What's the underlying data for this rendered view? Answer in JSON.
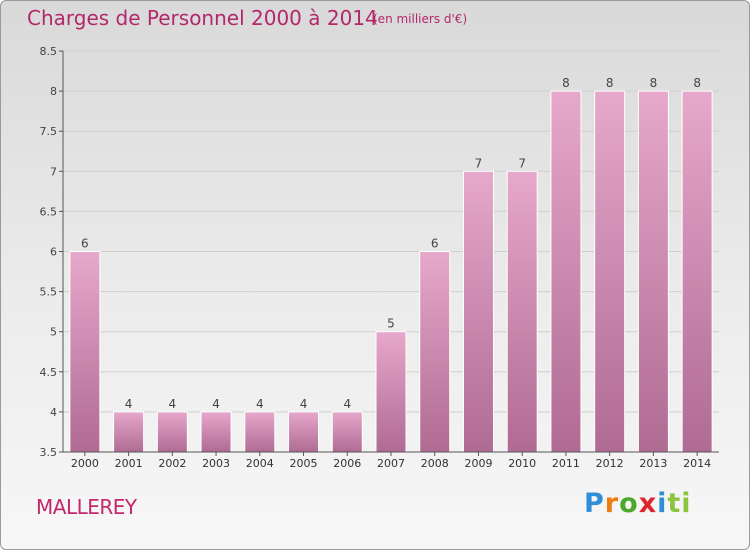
{
  "header": {
    "title": "Charges de Personnel 2000 à 2014",
    "unit": "(en milliers d'€)"
  },
  "footer": {
    "commune": "MALLEREY",
    "logo_letters": [
      "P",
      "r",
      "o",
      "x",
      "i",
      "ti"
    ]
  },
  "colors": {
    "title": "#b2286b",
    "bar_top": "#e6a8cb",
    "bar_bottom": "#b06b93",
    "grid": "#cfcfcf"
  },
  "chart_data": {
    "type": "bar",
    "title": "Charges de Personnel 2000 à 2014",
    "subtitle": "(en milliers d'€)",
    "categories": [
      "2000",
      "2001",
      "2002",
      "2003",
      "2004",
      "2005",
      "2006",
      "2007",
      "2008",
      "2009",
      "2010",
      "2011",
      "2012",
      "2013",
      "2014"
    ],
    "values": [
      6,
      4,
      4,
      4,
      4,
      4,
      4,
      5,
      6,
      7,
      7,
      8,
      8,
      8,
      8
    ],
    "data_labels": [
      "6",
      "4",
      "4",
      "4",
      "4",
      "4",
      "4",
      "5",
      "6",
      "7",
      "7",
      "8",
      "8",
      "8",
      "8"
    ],
    "ylim": [
      3.5,
      8.5
    ],
    "yticks": [
      "3.5",
      "4",
      "4.5",
      "5",
      "5.5",
      "6",
      "6.5",
      "7",
      "7.5",
      "8",
      "8.5"
    ],
    "grid": true,
    "legend": "none"
  }
}
